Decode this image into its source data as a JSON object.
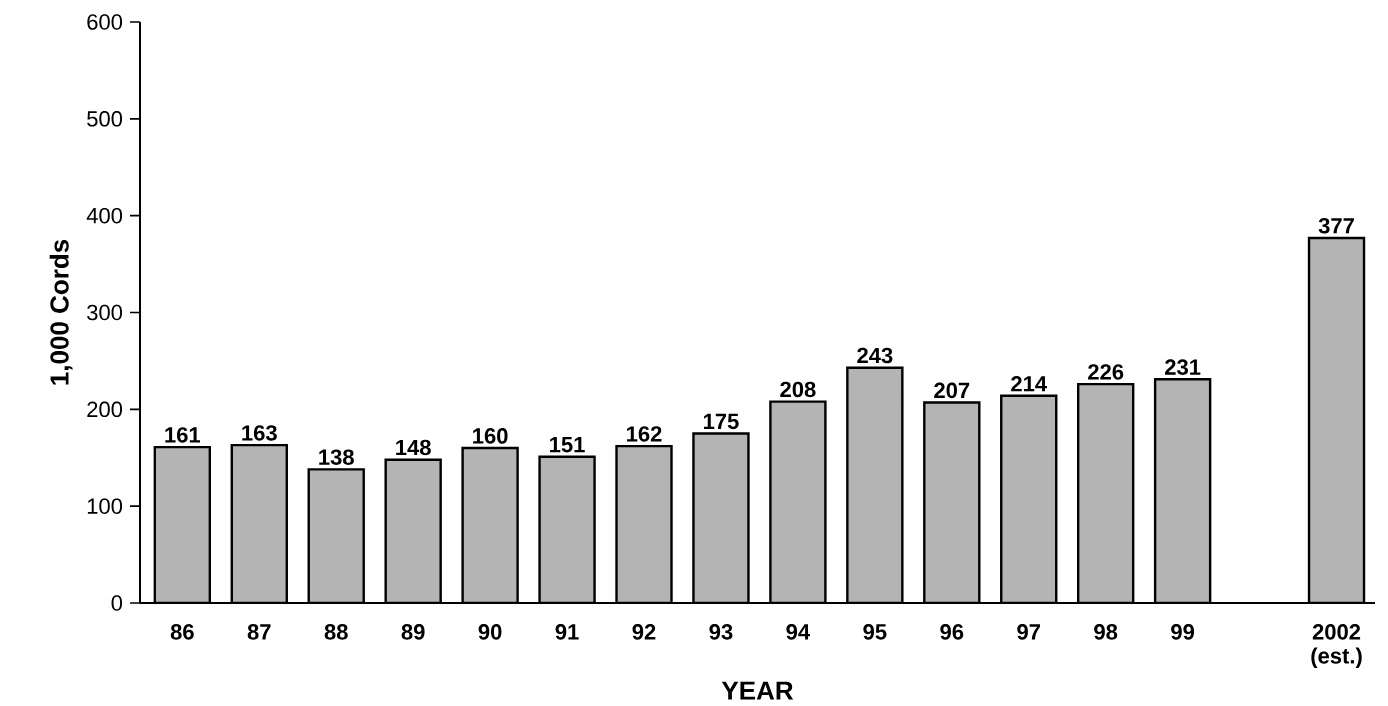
{
  "chart_data": {
    "type": "bar",
    "xlabel": "YEAR",
    "ylabel": "1,000 Cords",
    "categories": [
      "86",
      "87",
      "88",
      "89",
      "90",
      "91",
      "92",
      "93",
      "94",
      "95",
      "96",
      "97",
      "98",
      "99",
      null,
      "2002 (est.)"
    ],
    "values": [
      161,
      163,
      138,
      148,
      160,
      151,
      162,
      175,
      208,
      243,
      207,
      214,
      226,
      231,
      null,
      377
    ],
    "color": "#b4b4b4",
    "ylim": [
      0,
      600
    ],
    "yticks": [
      0,
      100,
      200,
      300,
      400,
      500,
      600
    ],
    "data_labels": true
  }
}
